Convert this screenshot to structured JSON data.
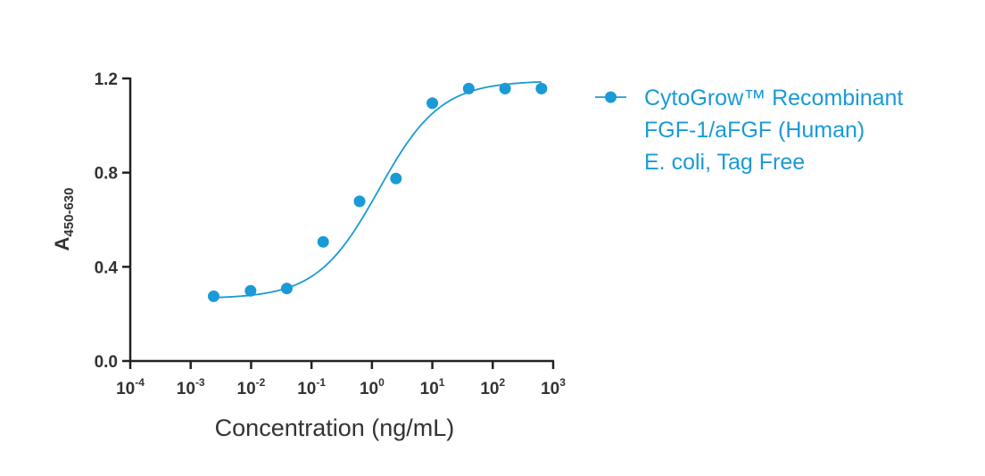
{
  "chart_data": {
    "type": "scatter",
    "xscale": "log",
    "xlim": [
      0.0001,
      1000
    ],
    "ylim": [
      0,
      1.2
    ],
    "xlabel": "Concentration (ng/mL)",
    "ylabel": {
      "main": "A",
      "subscript": "450-630"
    },
    "x_ticks": [
      {
        "base": "10",
        "exp": "-4"
      },
      {
        "base": "10",
        "exp": "-3"
      },
      {
        "base": "10",
        "exp": "-2"
      },
      {
        "base": "10",
        "exp": "-1"
      },
      {
        "base": "10",
        "exp": "0"
      },
      {
        "base": "10",
        "exp": "1"
      },
      {
        "base": "10",
        "exp": "2"
      },
      {
        "base": "10",
        "exp": "3"
      }
    ],
    "y_ticks": [
      "0.0",
      "0.4",
      "0.8",
      "1.2"
    ],
    "series": [
      {
        "name_lines": [
          "CytoGrow™ Recombinant",
          "FGF-1/aFGF (Human)",
          "E. coli, Tag Free"
        ],
        "color": "#1a9ad6",
        "x": [
          0.0024,
          0.0098,
          0.039,
          0.156,
          0.625,
          2.5,
          10,
          40,
          160,
          640
        ],
        "y": [
          0.275,
          0.298,
          0.308,
          0.506,
          0.678,
          0.775,
          1.095,
          1.157,
          1.157,
          1.157
        ]
      }
    ],
    "fit": {
      "bottom": 0.265,
      "top": 1.19,
      "ec50": 1.3,
      "hill": 0.85
    },
    "legend_position": "right",
    "grid": false
  }
}
